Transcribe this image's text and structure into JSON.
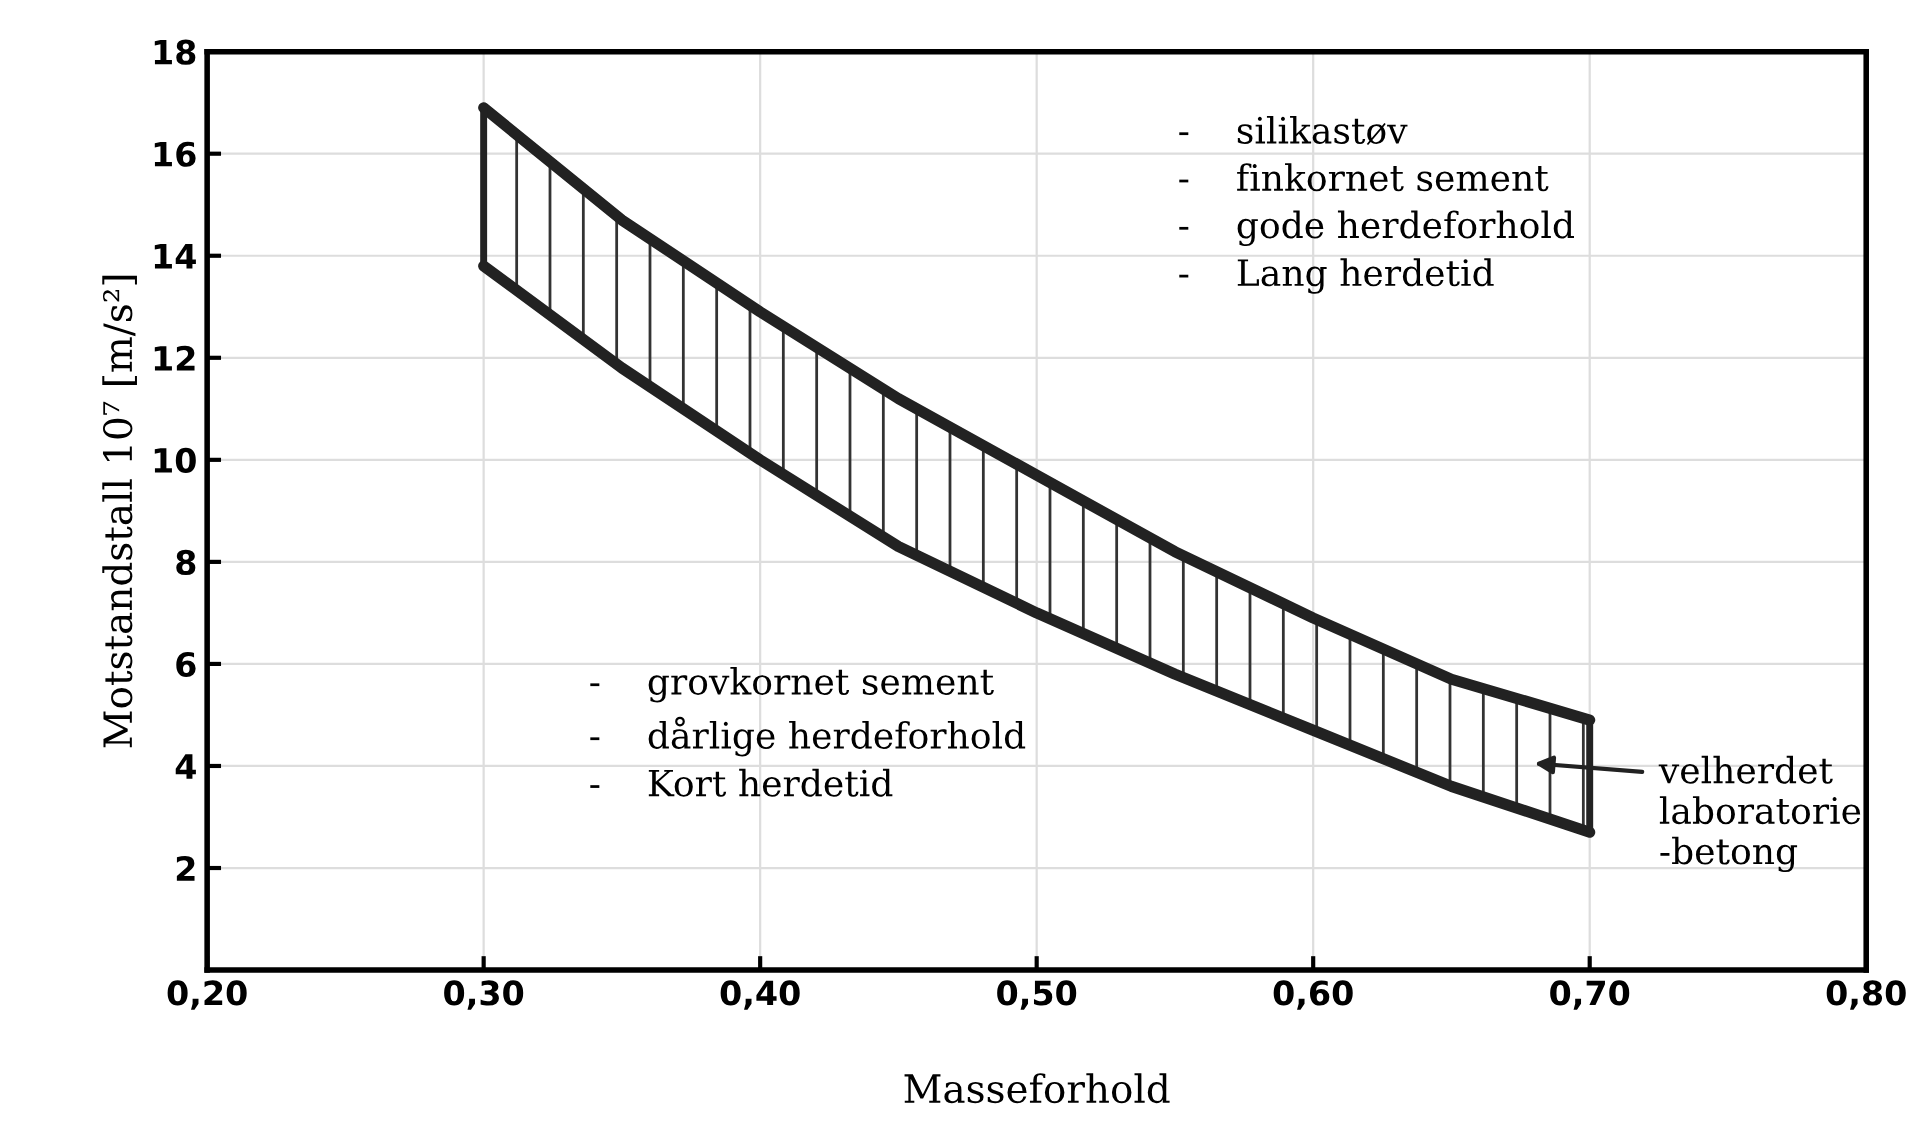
{
  "chart_data": {
    "type": "line",
    "xlabel": "Masseforhold",
    "ylabel": "Motstandstall 10⁷ [m/s²]",
    "x": [
      0.3,
      0.35,
      0.4,
      0.45,
      0.5,
      0.55,
      0.6,
      0.65,
      0.7
    ],
    "series": [
      {
        "color": "#222222",
        "values": [
          16.9,
          14.7,
          12.9,
          11.2,
          9.7,
          8.2,
          6.9,
          5.7,
          4.9
        ]
      },
      {
        "color": "#222222",
        "values": [
          13.8,
          11.8,
          10.0,
          8.3,
          7.0,
          5.8,
          4.7,
          3.6,
          2.7
        ]
      }
    ],
    "xlim": [
      0.2,
      0.8
    ],
    "xticks": [
      {
        "value": 0.2,
        "label": "0,20"
      },
      {
        "value": 0.3,
        "label": "0,30"
      },
      {
        "value": 0.4,
        "label": "0,40"
      },
      {
        "value": 0.5,
        "label": "0,50"
      },
      {
        "value": 0.6,
        "label": "0,60"
      },
      {
        "value": 0.7,
        "label": "0,70"
      },
      {
        "value": 0.8,
        "label": "0,80"
      }
    ],
    "ylim": [
      0,
      18
    ],
    "yticks": [
      2,
      4,
      6,
      8,
      10,
      12,
      14,
      16,
      18
    ],
    "grid": true,
    "legend": false,
    "marker": "none",
    "line_style": "solid",
    "annotations": [
      "-    silikastøv\n-    finkornet sement\n-    gode herdeforhold\n-    Lang herdetid",
      "-    grovkornet sement\n-    dårlige herdeforhold\n-    Kort herdetid",
      "velherdet\nlaboratorie\n-betong"
    ]
  }
}
